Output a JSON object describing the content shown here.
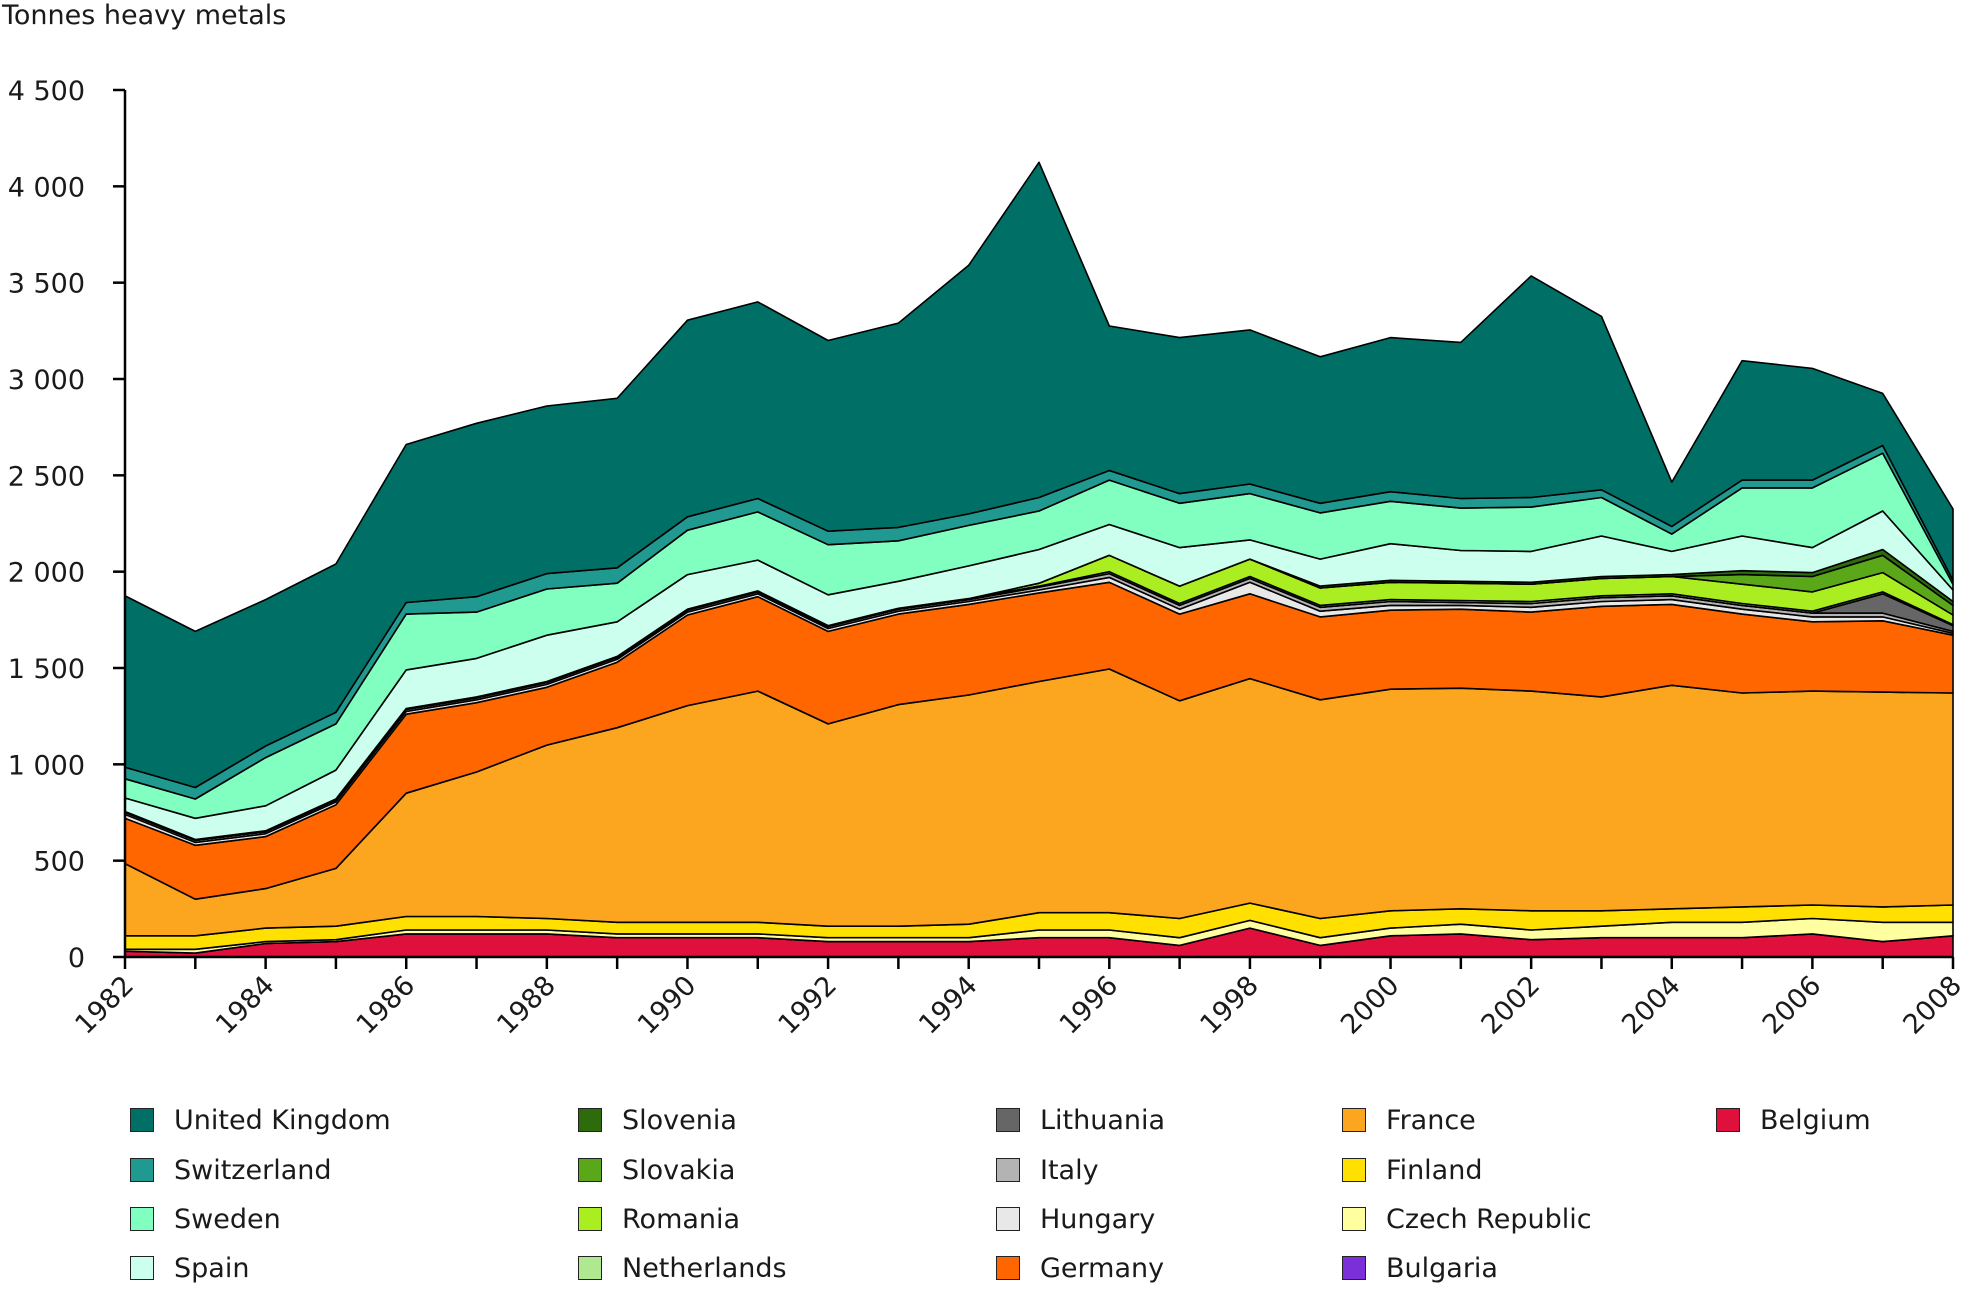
{
  "chart_data": {
    "type": "area",
    "stacked": true,
    "title": "",
    "ylabel": "Tonnes heavy metals",
    "xlabel": "",
    "ylim": [
      0,
      4500
    ],
    "yticks": [
      0,
      500,
      1000,
      1500,
      2000,
      2500,
      3000,
      3500,
      4000,
      4500
    ],
    "ytick_labels": [
      "0",
      "500",
      "1 000",
      "1 500",
      "2 000",
      "2 500",
      "3 000",
      "3 500",
      "4 000",
      "4 500"
    ],
    "x": [
      1982,
      1983,
      1984,
      1985,
      1986,
      1987,
      1988,
      1989,
      1990,
      1991,
      1992,
      1993,
      1994,
      1995,
      1996,
      1997,
      1998,
      1999,
      2000,
      2001,
      2002,
      2003,
      2004,
      2005,
      2006,
      2007,
      2008
    ],
    "xtick_labels": [
      "1982",
      "1984",
      "1986",
      "1988",
      "1990",
      "1992",
      "1994",
      "1996",
      "1998",
      "2000",
      "2002",
      "2004",
      "2006",
      "2008"
    ],
    "legend_position": "bottom",
    "series": [
      {
        "name": "Belgium",
        "color": "#e0103c",
        "values": [
          30,
          20,
          70,
          80,
          120,
          120,
          120,
          100,
          100,
          100,
          80,
          80,
          80,
          100,
          100,
          60,
          150,
          60,
          110,
          120,
          90,
          100,
          100,
          100,
          120,
          80,
          110
        ]
      },
      {
        "name": "Bulgaria",
        "color": "#7b2fd8",
        "values": [
          0,
          0,
          0,
          0,
          0,
          0,
          0,
          0,
          0,
          0,
          0,
          0,
          0,
          0,
          0,
          0,
          0,
          0,
          0,
          0,
          0,
          0,
          0,
          0,
          0,
          0,
          0
        ]
      },
      {
        "name": "Czech Republic",
        "color": "#ffffa0",
        "values": [
          10,
          20,
          10,
          10,
          20,
          20,
          20,
          20,
          20,
          20,
          20,
          20,
          20,
          40,
          40,
          40,
          40,
          40,
          40,
          50,
          50,
          60,
          80,
          80,
          80,
          100,
          70
        ]
      },
      {
        "name": "Finland",
        "color": "#ffe000",
        "values": [
          70,
          70,
          70,
          70,
          70,
          70,
          60,
          60,
          60,
          60,
          60,
          60,
          70,
          90,
          90,
          100,
          90,
          100,
          90,
          80,
          100,
          80,
          70,
          80,
          70,
          80,
          90
        ]
      },
      {
        "name": "France",
        "color": "#fba61e",
        "values": [
          375,
          190,
          205,
          300,
          640,
          750,
          900,
          1010,
          1125,
          1200,
          1050,
          1150,
          1190,
          1200,
          1265,
          1130,
          1165,
          1135,
          1150,
          1145,
          1140,
          1110,
          1160,
          1110,
          1110,
          1115,
          1100
        ]
      },
      {
        "name": "Germany",
        "color": "#ff6600",
        "values": [
          235,
          280,
          270,
          330,
          410,
          360,
          300,
          340,
          470,
          490,
          480,
          470,
          470,
          460,
          450,
          450,
          440,
          430,
          410,
          410,
          410,
          470,
          420,
          410,
          360,
          370,
          300
        ]
      },
      {
        "name": "Hungary",
        "color": "#e8e8e8",
        "values": [
          20,
          15,
          15,
          15,
          15,
          15,
          15,
          15,
          15,
          15,
          15,
          15,
          15,
          15,
          25,
          25,
          60,
          30,
          25,
          20,
          25,
          25,
          25,
          25,
          25,
          20,
          10
        ]
      },
      {
        "name": "Italy",
        "color": "#b3b3b3",
        "values": [
          10,
          10,
          10,
          10,
          10,
          10,
          10,
          10,
          10,
          10,
          10,
          10,
          10,
          15,
          20,
          20,
          20,
          20,
          20,
          15,
          20,
          20,
          20,
          20,
          20,
          20,
          10
        ]
      },
      {
        "name": "Lithuania",
        "color": "#666666",
        "values": [
          0,
          0,
          0,
          0,
          0,
          0,
          0,
          0,
          0,
          0,
          0,
          0,
          0,
          0,
          0,
          0,
          0,
          0,
          0,
          0,
          0,
          0,
          0,
          0,
          0,
          100,
          30
        ]
      },
      {
        "name": "Netherlands",
        "color": "#b0e890",
        "values": [
          5,
          5,
          5,
          5,
          5,
          5,
          5,
          5,
          5,
          5,
          5,
          5,
          5,
          5,
          10,
          10,
          10,
          10,
          10,
          10,
          10,
          10,
          10,
          10,
          10,
          10,
          5
        ]
      },
      {
        "name": "Romania",
        "color": "#aaee22",
        "values": [
          0,
          0,
          0,
          0,
          0,
          0,
          0,
          0,
          0,
          0,
          0,
          0,
          0,
          15,
          85,
          90,
          90,
          90,
          90,
          90,
          90,
          90,
          90,
          100,
          100,
          100,
          50
        ]
      },
      {
        "name": "Slovakia",
        "color": "#5aa81a",
        "values": [
          0,
          0,
          0,
          0,
          0,
          0,
          0,
          0,
          0,
          0,
          0,
          0,
          0,
          0,
          0,
          0,
          0,
          0,
          0,
          0,
          0,
          0,
          0,
          50,
          80,
          90,
          50
        ]
      },
      {
        "name": "Slovenia",
        "color": "#2d6b0c",
        "values": [
          0,
          0,
          0,
          0,
          0,
          0,
          0,
          0,
          0,
          0,
          0,
          0,
          0,
          0,
          0,
          0,
          0,
          10,
          10,
          10,
          10,
          10,
          10,
          20,
          20,
          30,
          20
        ]
      },
      {
        "name": "Spain",
        "color": "#ccffee",
        "values": [
          70,
          110,
          130,
          150,
          200,
          200,
          240,
          180,
          180,
          160,
          160,
          140,
          170,
          175,
          160,
          200,
          100,
          140,
          190,
          160,
          160,
          210,
          120,
          180,
          130,
          200,
          60
        ]
      },
      {
        "name": "Sweden",
        "color": "#80ffc0",
        "values": [
          100,
          100,
          250,
          240,
          290,
          240,
          240,
          200,
          230,
          250,
          260,
          210,
          210,
          200,
          230,
          230,
          240,
          240,
          220,
          220,
          230,
          200,
          90,
          250,
          310,
          300,
          30
        ]
      },
      {
        "name": "Switzerland",
        "color": "#209a90",
        "values": [
          60,
          60,
          60,
          60,
          60,
          80,
          80,
          80,
          70,
          70,
          70,
          70,
          60,
          70,
          50,
          50,
          50,
          50,
          50,
          50,
          50,
          40,
          40,
          40,
          40,
          40,
          20
        ]
      },
      {
        "name": "United Kingdom",
        "color": "#007066",
        "values": [
          890,
          810,
          760,
          770,
          820,
          900,
          870,
          880,
          1020,
          1020,
          990,
          1060,
          1290,
          1740,
          750,
          810,
          800,
          760,
          800,
          810,
          1150,
          900,
          230,
          620,
          580,
          270,
          370
        ]
      }
    ]
  }
}
